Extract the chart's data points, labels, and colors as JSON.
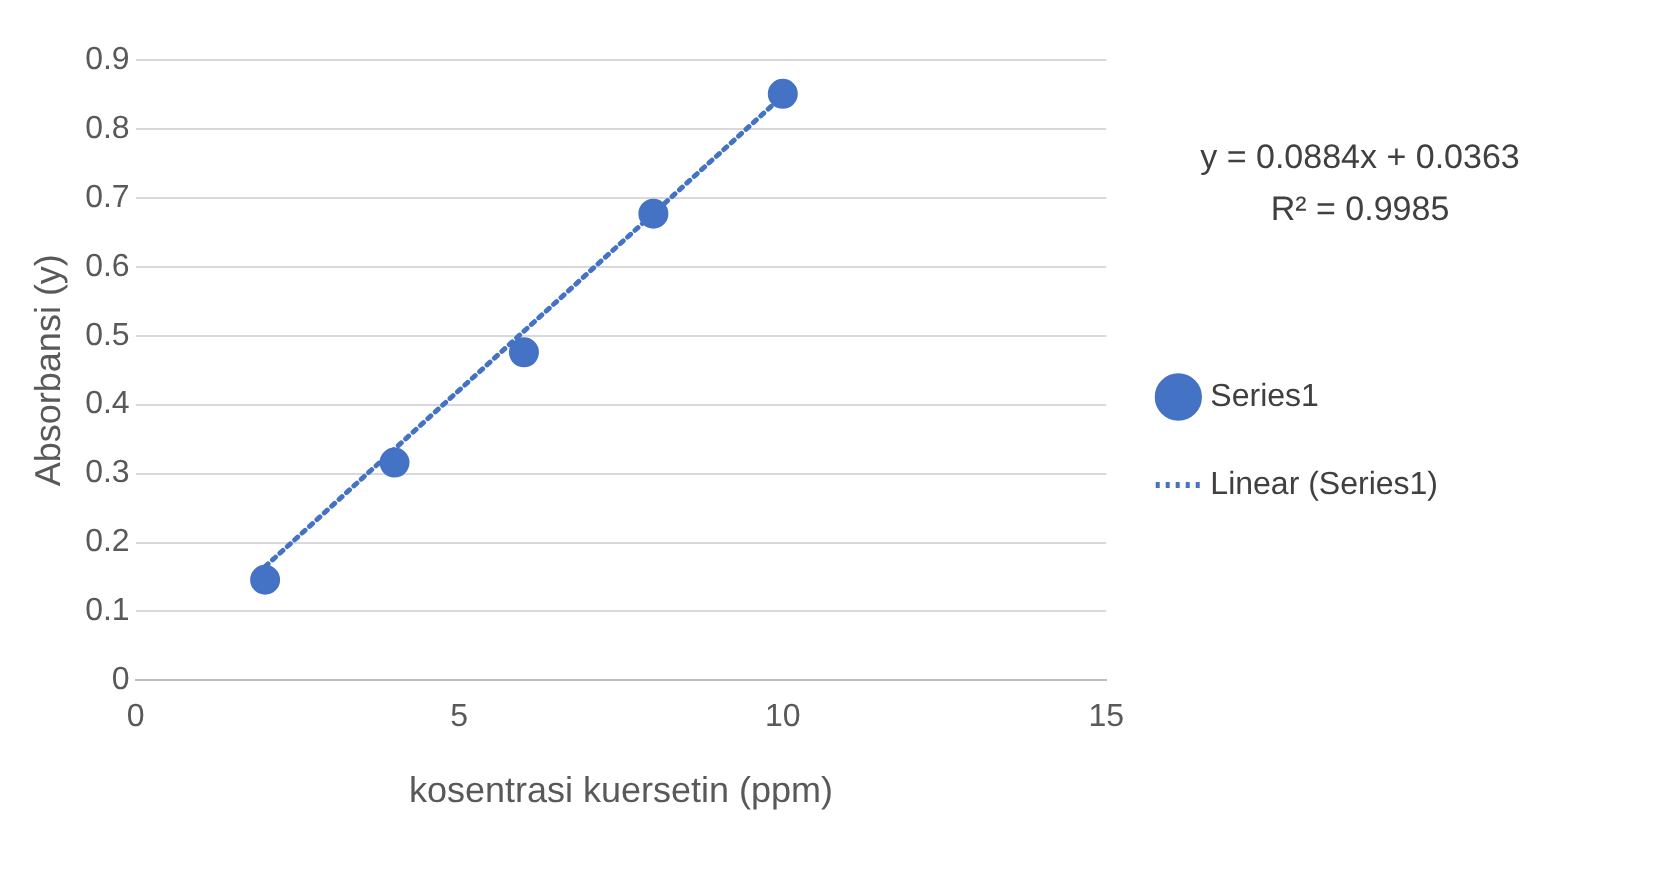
{
  "chart_data": {
    "type": "scatter",
    "xlabel": "kosentrasi kuersetin (ppm)",
    "ylabel": "Absorbansi (y)",
    "series": [
      {
        "name": "Series1",
        "type": "scatter",
        "color": "#4472c4",
        "marker": "circle",
        "x": [
          2,
          4,
          6,
          8,
          10
        ],
        "values": [
          0.146,
          0.316,
          0.476,
          0.677,
          0.851
        ]
      },
      {
        "name": "Linear (Series1)",
        "type": "line",
        "color": "#4472c4",
        "marker": "none",
        "line_style": "dotted",
        "x": [
          2,
          10
        ],
        "values": [
          0.165,
          0.848
        ]
      }
    ],
    "xlim": [
      0,
      15
    ],
    "xticks": [
      0,
      5,
      10,
      15
    ],
    "ylim": [
      0,
      0.9
    ],
    "yticks": [
      0,
      0.1,
      0.2,
      0.3,
      0.4,
      0.5,
      0.6,
      0.7,
      0.8,
      0.9
    ],
    "grid": "y",
    "legend": "right",
    "annotations": [
      "y = 0.0884x + 0.0363",
      "R² = 0.9985"
    ]
  }
}
